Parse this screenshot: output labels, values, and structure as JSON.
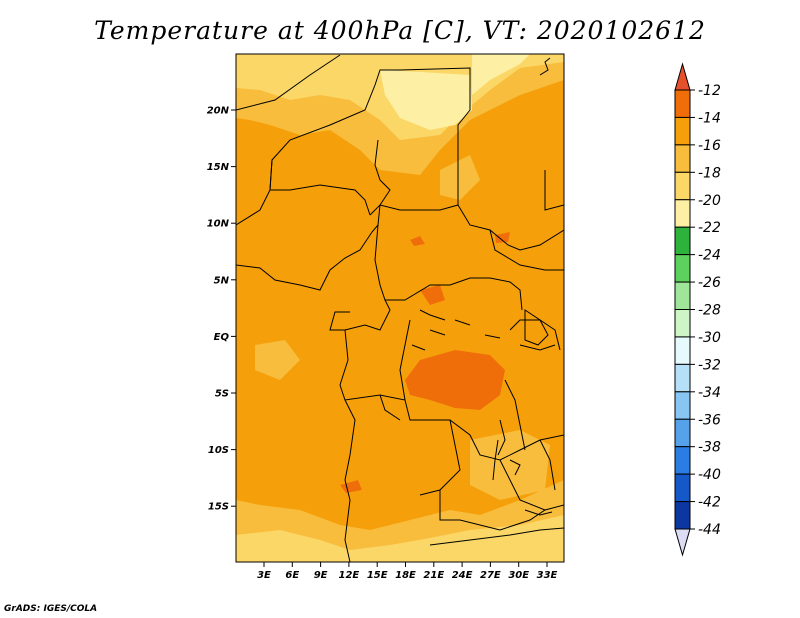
{
  "title": "Temperature at 400hPa [C], VT: 2020102612",
  "credit": "GrADS: IGES/COLA",
  "map": {
    "lat_labels": [
      "20N",
      "15N",
      "10N",
      "5N",
      "EQ",
      "5S",
      "10S",
      "15S"
    ],
    "lon_labels": [
      "3E",
      "6E",
      "9E",
      "12E",
      "15E",
      "18E",
      "21E",
      "24E",
      "27E",
      "30E",
      "33E"
    ]
  },
  "colorbar": {
    "labels": [
      "-12",
      "-14",
      "-16",
      "-18",
      "-20",
      "-22",
      "-24",
      "-26",
      "-28",
      "-30",
      "-32",
      "-34",
      "-36",
      "-38",
      "-40",
      "-42",
      "-44"
    ],
    "colors": [
      "#e6502a",
      "#f06e0a",
      "#f5a00a",
      "#f8bd3c",
      "#fbd767",
      "#fdf0a5",
      "#2db33c",
      "#5dd15e",
      "#9fe69a",
      "#cdf5c6",
      "#e6f9fd",
      "#b5e0f7",
      "#88c5f3",
      "#55a2ea",
      "#2a7ee3",
      "#1558c8",
      "#0c36a0",
      "#0c1a78",
      "#dcdcf5"
    ]
  },
  "fill_colors": {
    "warm": "#f06e0a",
    "main": "#f5a00a",
    "light": "#f8bd3c",
    "pale": "#fbd767",
    "palest": "#fdf0a5",
    "hot": "#e6502a"
  }
}
